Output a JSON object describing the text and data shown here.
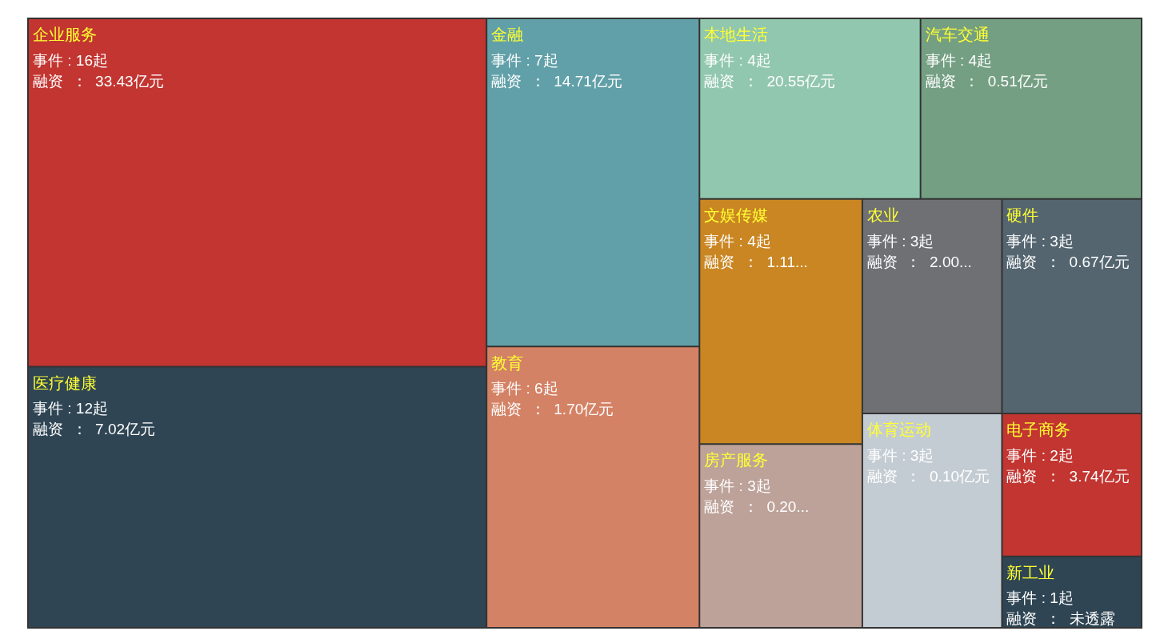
{
  "chart_data": {
    "type": "other",
    "categories": [
      "企业服务",
      "医疗健康",
      "金融",
      "教育",
      "本地生活",
      "汽车交通",
      "文娱传媒",
      "房产服务",
      "农业",
      "硬件",
      "体育运动",
      "电子商务",
      "新工业"
    ],
    "values": [
      16,
      12,
      7,
      6,
      4,
      4,
      4,
      3,
      3,
      3,
      3,
      2,
      1
    ],
    "value_labels": [
      "事件 : 16起",
      "事件 : 12起",
      "事件 : 7起",
      "事件 : 6起",
      "事件 : 4起",
      "事件 : 4起",
      "事件 : 4起",
      "事件 : 3起",
      "事件 : 3起",
      "事件 : 3起",
      "事件 : 3起",
      "事件 : 2起",
      "事件 : 1起"
    ],
    "annotations": [
      "融资  ：  33.43亿元",
      "融资  ：  7.02亿元",
      "融资  ：  14.71亿元",
      "融资  ：  1.70亿元",
      "融资  ：  20.55亿元",
      "融资  ：  0.51亿元",
      "融资  ：  1.11...",
      "融资  ：  0.20...",
      "融资  ：  2.00...",
      "融资  ：  0.67亿元",
      "融资  ：  0.10亿元",
      "融资  ：  3.74亿元",
      "融资  ：  未透露"
    ],
    "colors": [
      "#c23531",
      "#2f4554",
      "#61a0a8",
      "#d48265",
      "#91c7ae",
      "#749f83",
      "#ca8622",
      "#bda29a",
      "#6e7074",
      "#546570",
      "#c4ccd3",
      "#c23531",
      "#2f4554"
    ]
  }
}
